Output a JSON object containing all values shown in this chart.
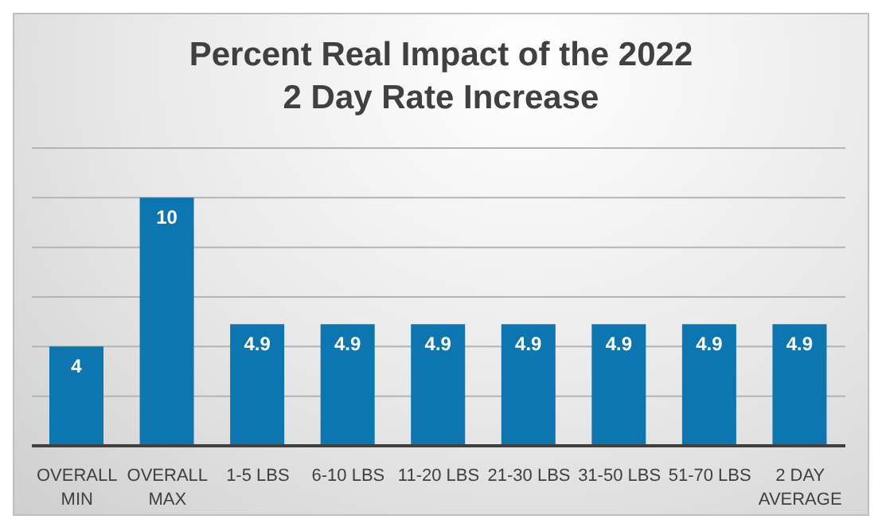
{
  "chart_data": {
    "type": "bar",
    "title": "Percent Real Impact of the 2022\n2 Day Rate Increase",
    "categories": [
      "OVERALL MIN",
      "OVERALL MAX",
      "1-5 LBS",
      "6-10 LBS",
      "11-20 LBS",
      "21-30 LBS",
      "31-50 LBS",
      "51-70 LBS",
      "2 DAY AVERAGE"
    ],
    "values": [
      4,
      10,
      4.9,
      4.9,
      4.9,
      4.9,
      4.9,
      4.9,
      4.9
    ],
    "color": "#0b76b0",
    "ylim": [
      0,
      12
    ],
    "yticks": [
      0,
      2,
      4,
      6,
      8,
      10,
      12
    ],
    "grid": "y",
    "tick_labels": "x",
    "data_labels": true
  }
}
